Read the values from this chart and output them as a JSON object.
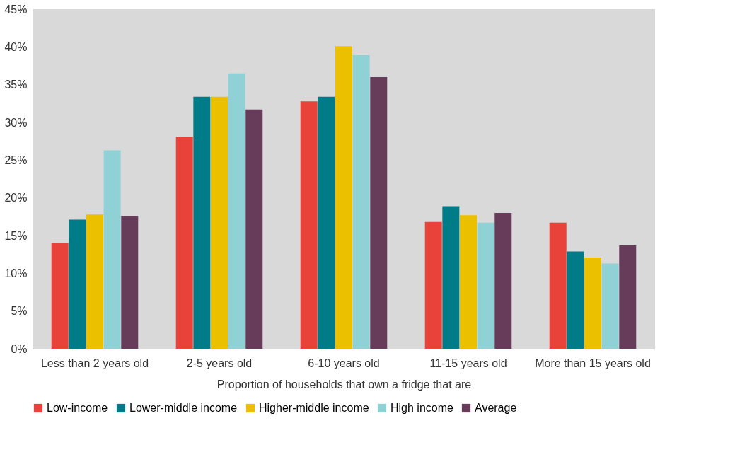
{
  "chart_data": {
    "type": "bar",
    "xlabel": "Proportion of households that own a fridge that are",
    "categories": [
      "Less than 2 years old",
      "2-5 years old",
      "6-10 years old",
      "11-15 years old",
      "More than 15 years old"
    ],
    "series": [
      {
        "name": "Low-income",
        "color": "#e8423a",
        "values": [
          14.0,
          28.1,
          32.8,
          16.8,
          16.7
        ]
      },
      {
        "name": "Lower-middle income",
        "color": "#007c89",
        "values": [
          17.1,
          33.4,
          33.4,
          18.9,
          12.9
        ]
      },
      {
        "name": "Higher-middle income",
        "color": "#ebc000",
        "values": [
          17.8,
          33.4,
          40.1,
          17.7,
          12.1
        ]
      },
      {
        "name": "High income",
        "color": "#8fd1d4",
        "values": [
          26.3,
          36.5,
          38.9,
          16.7,
          11.3
        ]
      },
      {
        "name": "Average",
        "color": "#673b5a",
        "values": [
          17.6,
          31.7,
          36.0,
          18.0,
          13.7
        ]
      }
    ],
    "ylim": [
      0,
      45
    ],
    "yticks": [
      {
        "value": 0,
        "label": "0%"
      },
      {
        "value": 5,
        "label": "5%"
      },
      {
        "value": 10,
        "label": "10%"
      },
      {
        "value": 15,
        "label": "15%"
      },
      {
        "value": 20,
        "label": "20%"
      },
      {
        "value": 25,
        "label": "25%"
      },
      {
        "value": 30,
        "label": "30%"
      },
      {
        "value": 35,
        "label": "35%"
      },
      {
        "value": 40,
        "label": "40%"
      },
      {
        "value": 45,
        "label": "45%"
      }
    ],
    "grid": false,
    "legend": "bottom"
  }
}
